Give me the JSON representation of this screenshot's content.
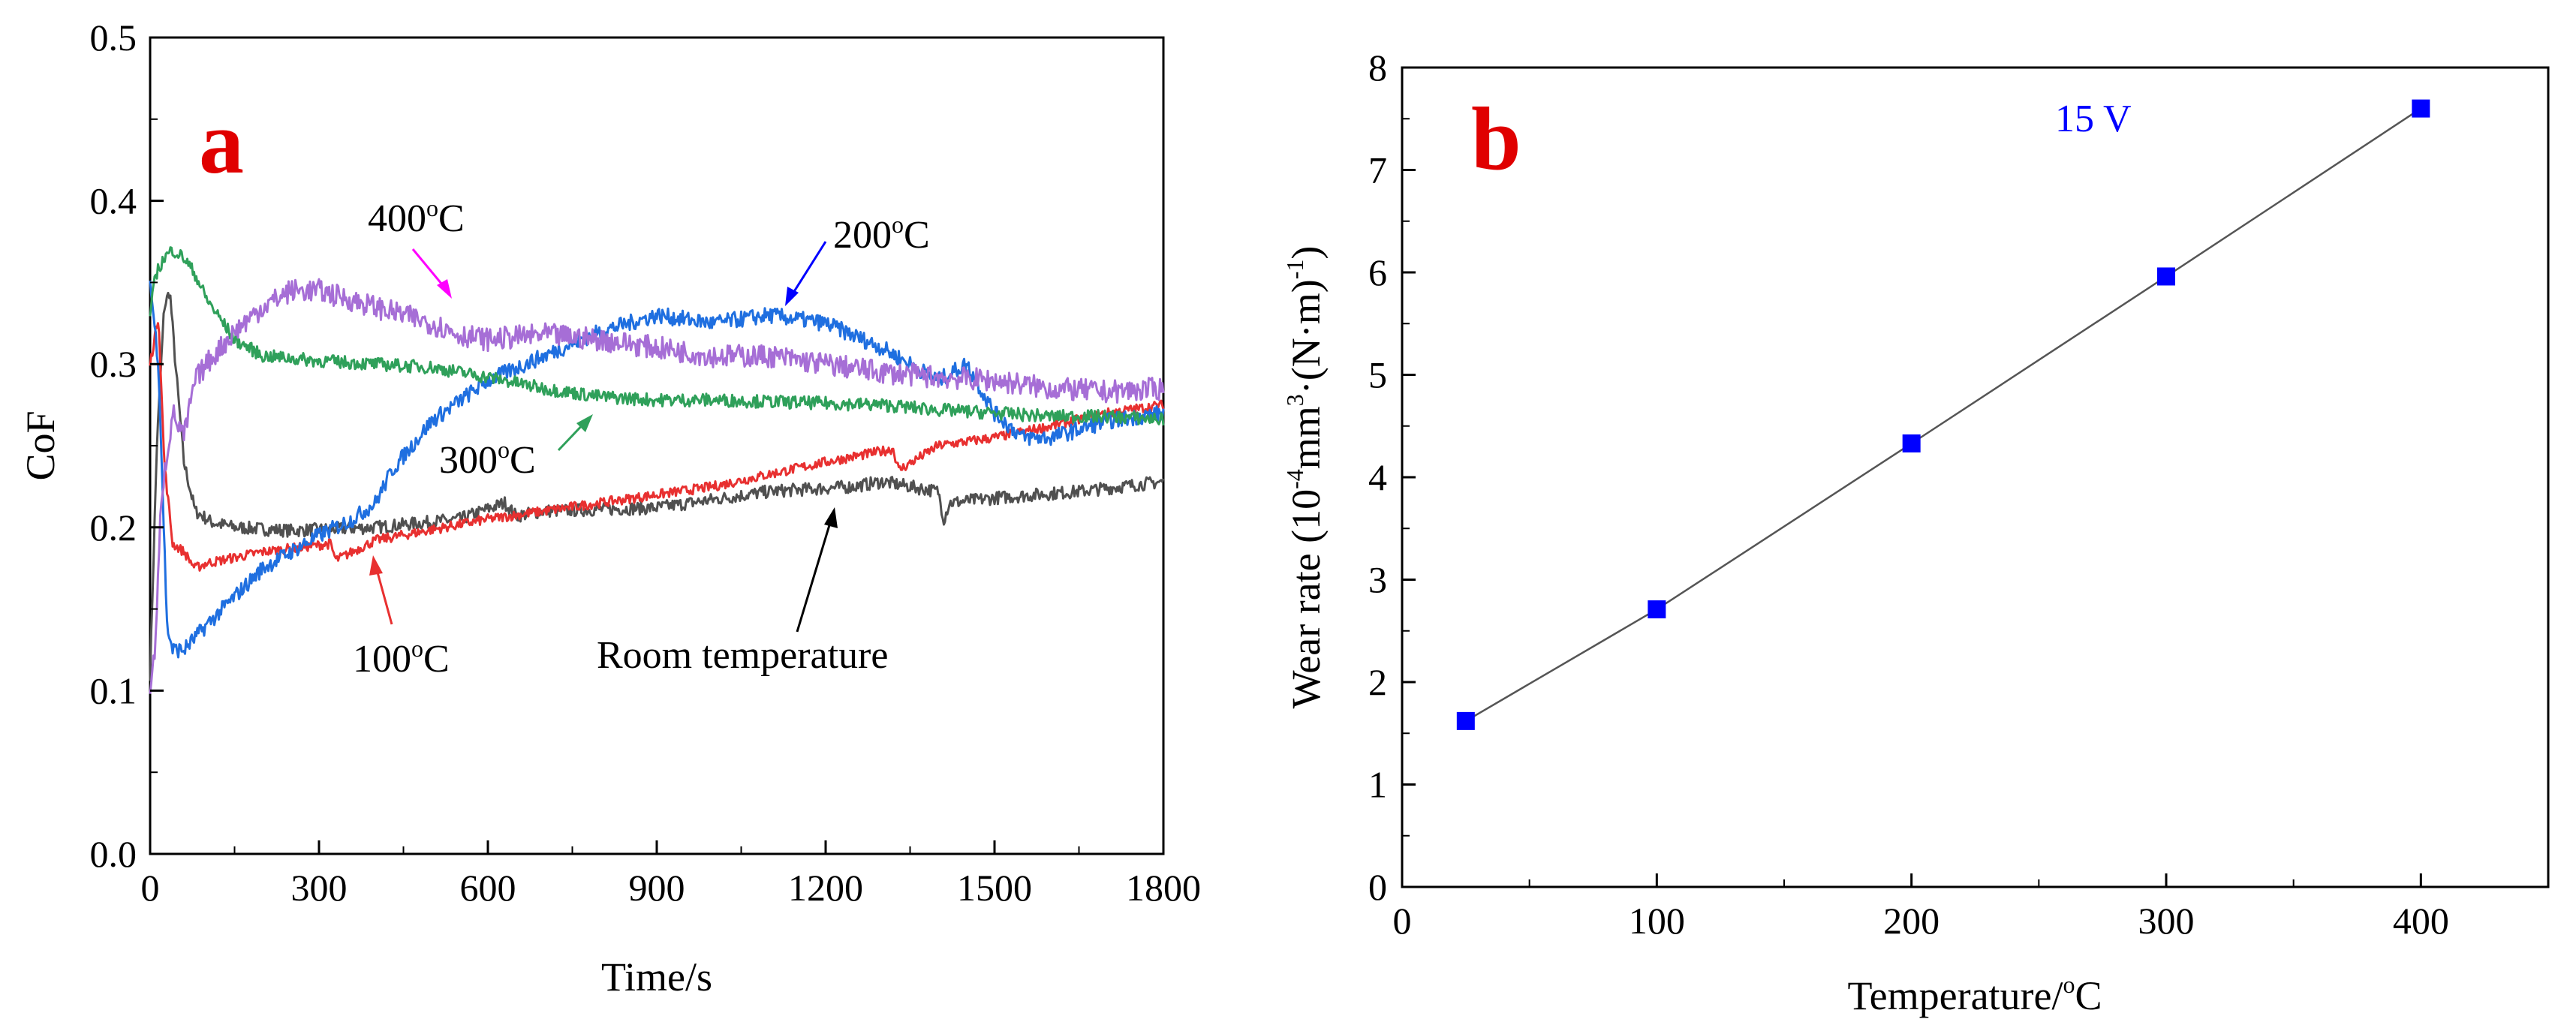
{
  "chart_data": [
    {
      "panel": "a",
      "type": "line",
      "xlabel": "Time/s",
      "ylabel": "CoF",
      "xlim": [
        0,
        1800
      ],
      "ylim": [
        0.0,
        0.5
      ],
      "xticks": [
        "0",
        "300",
        "600",
        "900",
        "1200",
        "1500",
        "1800"
      ],
      "yticks": [
        "0.0",
        "0.1",
        "0.2",
        "0.3",
        "0.4",
        "0.5"
      ],
      "series": [
        {
          "name": "Room temperature",
          "color": "#505050",
          "noise": 0.004,
          "x": [
            0,
            12,
            25,
            35,
            45,
            60,
            80,
            110,
            150,
            250,
            400,
            550,
            630,
            650,
            700,
            900,
            1100,
            1250,
            1300,
            1400,
            1410,
            1420,
            1500,
            1650,
            1800
          ],
          "y": [
            0.11,
            0.25,
            0.335,
            0.345,
            0.3,
            0.24,
            0.21,
            0.203,
            0.2,
            0.198,
            0.2,
            0.205,
            0.215,
            0.207,
            0.21,
            0.212,
            0.222,
            0.225,
            0.228,
            0.222,
            0.205,
            0.215,
            0.218,
            0.222,
            0.228
          ]
        },
        {
          "name": "100oC",
          "color": "#e83030",
          "noise": 0.003,
          "x": [
            0,
            15,
            25,
            40,
            60,
            80,
            100,
            200,
            320,
            330,
            400,
            600,
            800,
            1000,
            1200,
            1320,
            1330,
            1400,
            1500,
            1600,
            1700,
            1800
          ],
          "y": [
            0.3,
            0.33,
            0.24,
            0.19,
            0.185,
            0.175,
            0.178,
            0.185,
            0.19,
            0.18,
            0.192,
            0.205,
            0.215,
            0.225,
            0.24,
            0.248,
            0.235,
            0.25,
            0.255,
            0.262,
            0.27,
            0.275
          ]
        },
        {
          "name": "200oC",
          "color": "#1f6fe0",
          "noise": 0.005,
          "x": [
            0,
            15,
            30,
            40,
            60,
            100,
            200,
            300,
            360,
            400,
            430,
            500,
            600,
            700,
            800,
            900,
            1000,
            1100,
            1200,
            1300,
            1400,
            1450,
            1500,
            1550,
            1600,
            1700,
            1800
          ],
          "y": [
            0.35,
            0.3,
            0.14,
            0.125,
            0.125,
            0.14,
            0.175,
            0.195,
            0.205,
            0.215,
            0.235,
            0.265,
            0.29,
            0.305,
            0.32,
            0.33,
            0.325,
            0.33,
            0.325,
            0.31,
            0.29,
            0.3,
            0.27,
            0.255,
            0.255,
            0.265,
            0.27
          ]
        },
        {
          "name": "300oC",
          "color": "#2fa05a",
          "noise": 0.004,
          "x": [
            0,
            10,
            25,
            40,
            60,
            80,
            100,
            150,
            200,
            300,
            400,
            500,
            600,
            700,
            800,
            900,
            1000,
            1100,
            1200,
            1300,
            1400,
            1500,
            1600,
            1700,
            1800
          ],
          "y": [
            0.33,
            0.355,
            0.365,
            0.37,
            0.365,
            0.355,
            0.34,
            0.315,
            0.305,
            0.302,
            0.3,
            0.298,
            0.292,
            0.285,
            0.28,
            0.278,
            0.278,
            0.277,
            0.276,
            0.275,
            0.272,
            0.27,
            0.268,
            0.268,
            0.266
          ]
        },
        {
          "name": "400oC",
          "color": "#a66ed6",
          "noise": 0.007,
          "x": [
            0,
            10,
            20,
            40,
            60,
            80,
            100,
            150,
            200,
            250,
            300,
            400,
            500,
            550,
            600,
            700,
            800,
            900,
            1000,
            1100,
            1200,
            1300,
            1400,
            1500,
            1600,
            1700,
            1800
          ],
          "y": [
            0.1,
            0.13,
            0.22,
            0.27,
            0.255,
            0.29,
            0.3,
            0.32,
            0.335,
            0.345,
            0.345,
            0.335,
            0.325,
            0.318,
            0.315,
            0.318,
            0.315,
            0.31,
            0.305,
            0.305,
            0.3,
            0.295,
            0.292,
            0.29,
            0.285,
            0.283,
            0.285
          ]
        }
      ],
      "annotations": [
        {
          "base": "400",
          "sup": "o",
          "unit": "C",
          "color": "#ff00ff"
        },
        {
          "base": "200",
          "sup": "o",
          "unit": "C",
          "color": "#0000ff"
        },
        {
          "base": "300",
          "sup": "o",
          "unit": "C",
          "color": "#2fa05a"
        },
        {
          "base": "100",
          "sup": "o",
          "unit": "C",
          "color": "#e83030"
        },
        {
          "text": "Room temperature",
          "color": "#000000"
        }
      ],
      "panel_label": "a"
    },
    {
      "panel": "b",
      "type": "line",
      "marker": "square",
      "marker_color": "#0000ff",
      "line_color": "#555555",
      "x": [
        25,
        100,
        200,
        300,
        400
      ],
      "y": [
        1.62,
        2.71,
        4.33,
        5.96,
        7.6
      ],
      "xlim": [
        0,
        450
      ],
      "ylim": [
        0,
        8
      ],
      "xticks": [
        "0",
        "100",
        "200",
        "300",
        "400"
      ],
      "yticks": [
        "0",
        "1",
        "2",
        "3",
        "4",
        "5",
        "6",
        "7",
        "8"
      ],
      "xlabel": {
        "base": "Temperature/",
        "sup": "o",
        "unit": "C"
      },
      "ylabel": {
        "p1": "Wear rate (10",
        "s1": "-4",
        "p2": "mm",
        "s2": "3",
        "p3": "·(N·m)",
        "s3": "-1",
        "p4": ")"
      },
      "legend_text": "15 V",
      "legend_color": "#0000ff",
      "panel_label": "b"
    }
  ]
}
